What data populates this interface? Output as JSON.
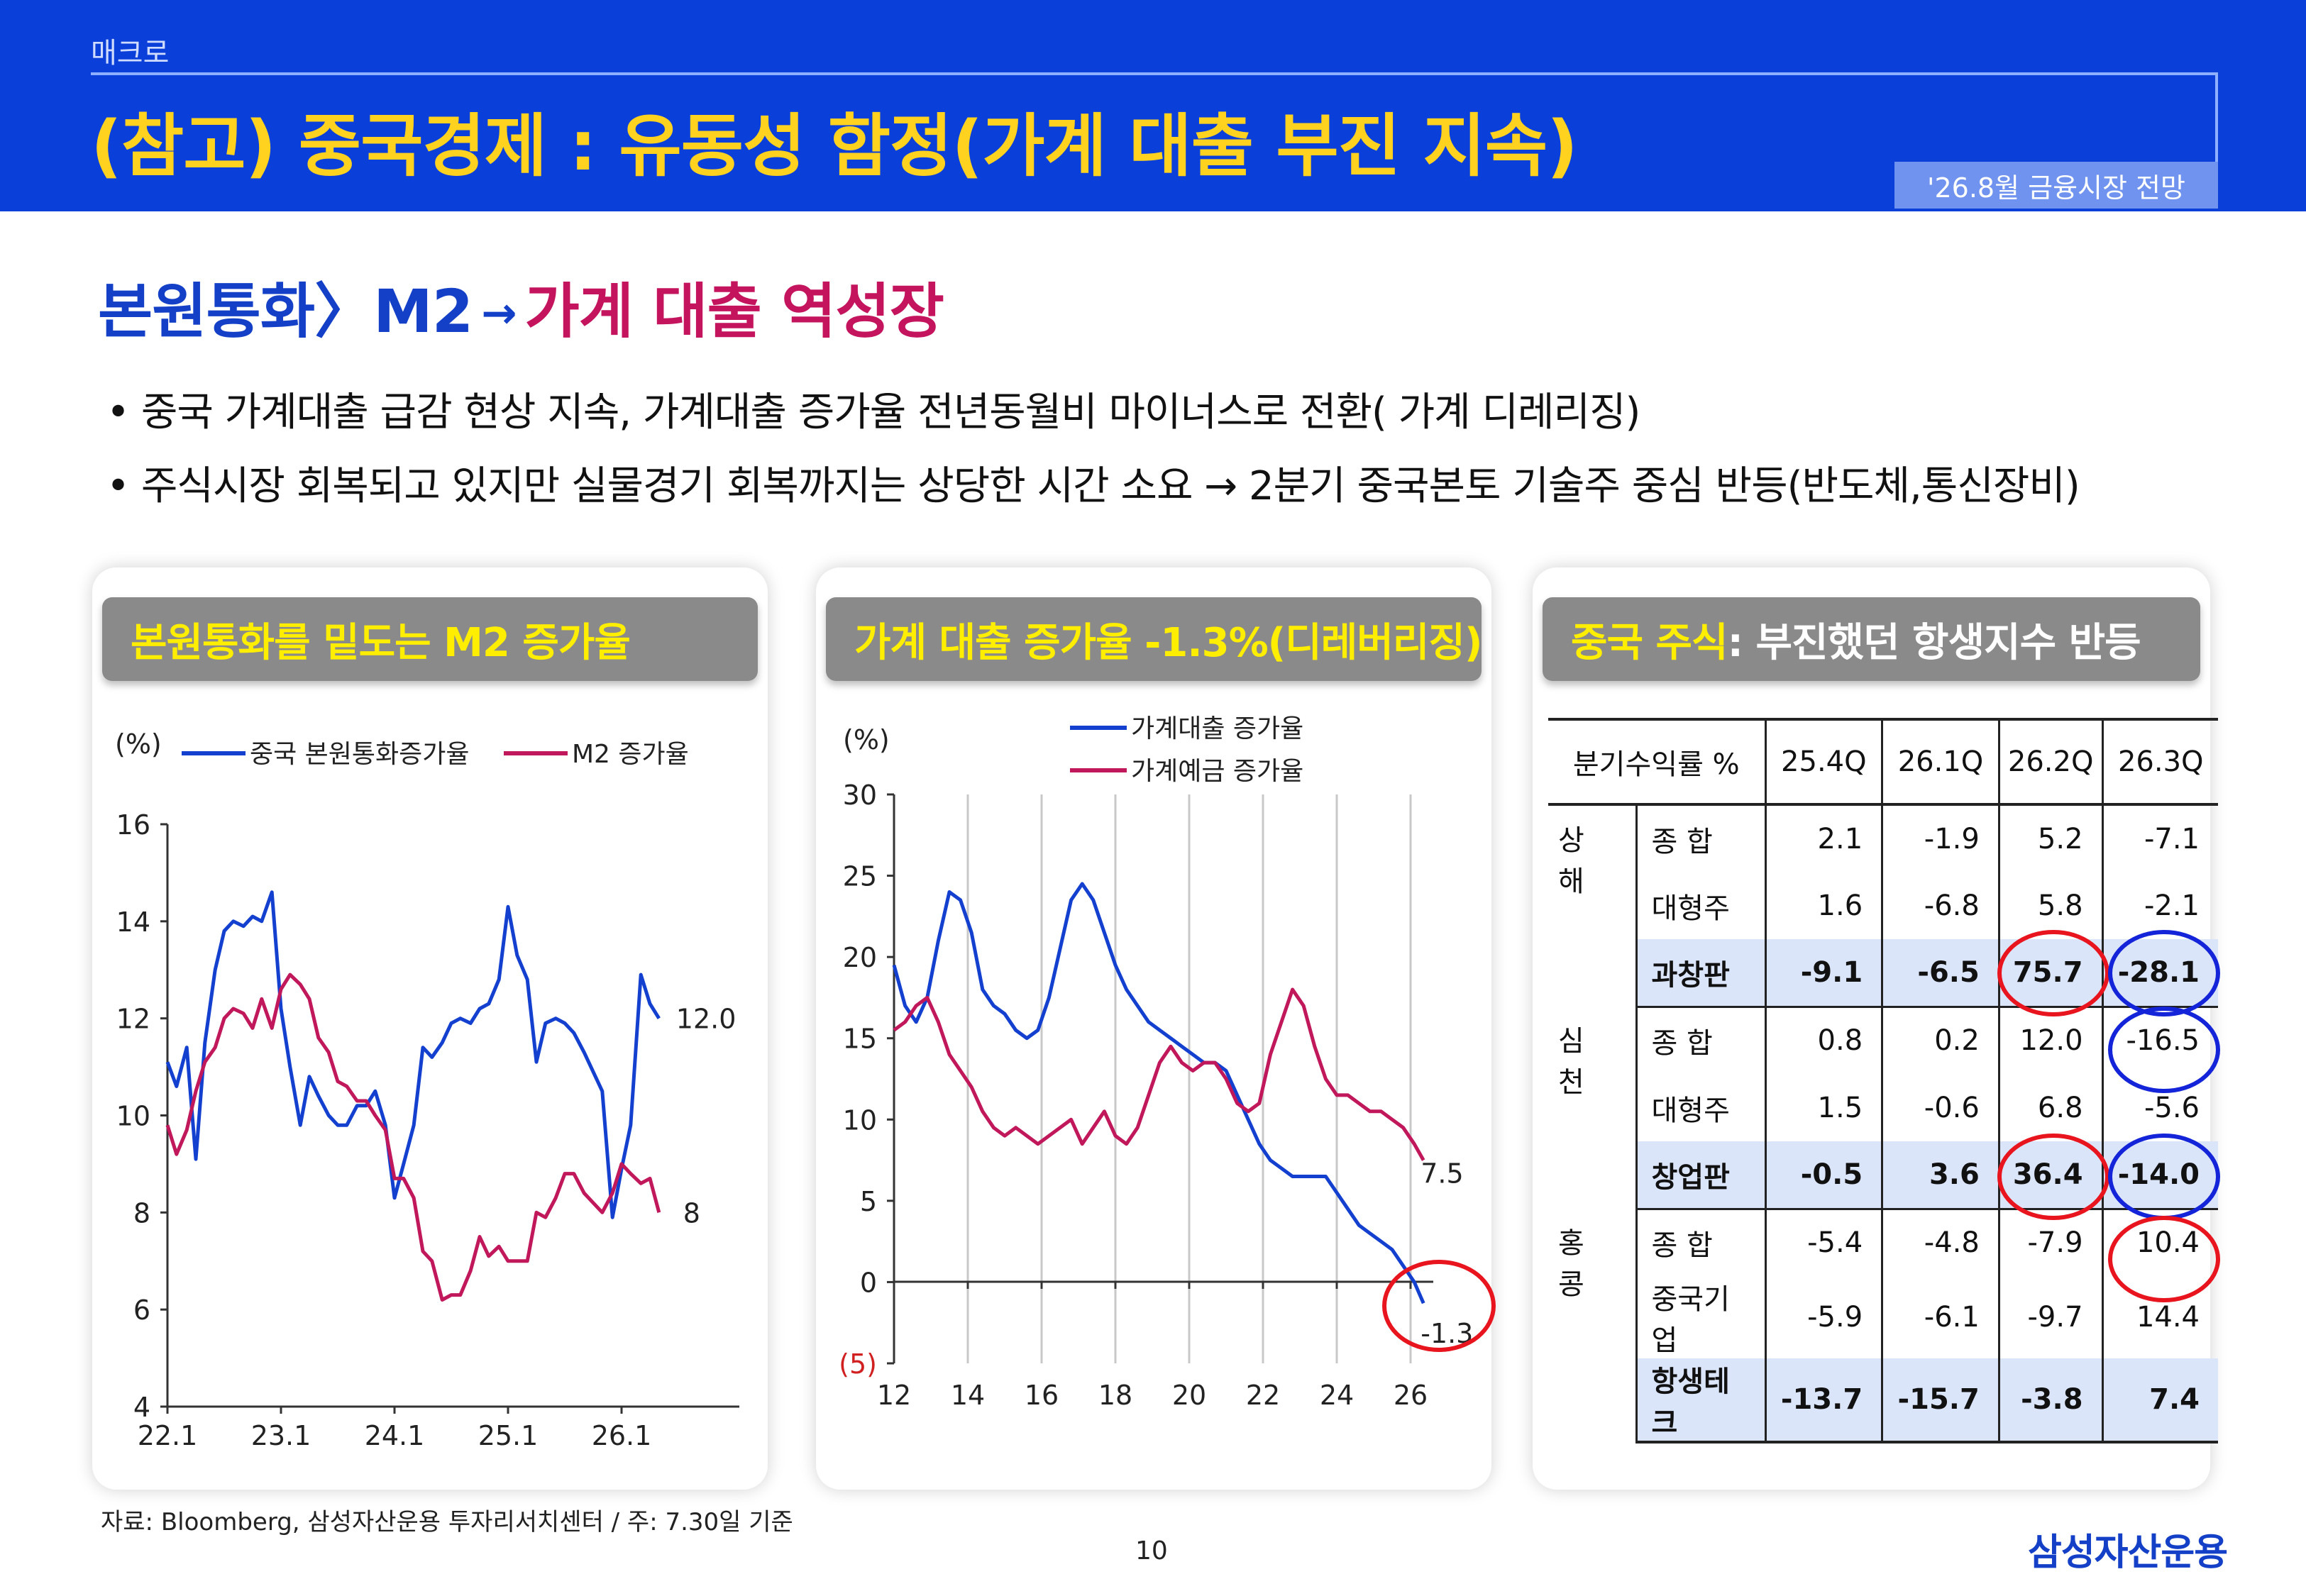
{
  "header": {
    "breadcrumb": "매크로",
    "title": "(참고) 중국경제 : 유동성 함정(가계 대출 부진 지속)",
    "badge": "'26.8월 금융시장 전망"
  },
  "subtitle": {
    "part1": "본원통화",
    "sep": "〉",
    "part2": "M2",
    "arrow": "→",
    "part3": "가계 대출 역성장"
  },
  "bullets": [
    "• 중국 가계대출 급감 현상 지속, 가계대출 증가율 전년동월비 마이너스로 전환( 가계 디레리징)",
    "• 주식시장 회복되고 있지만 실물경기 회복까지는 상당한 시간 소요 → 2분기 중국본토 기술주 중심 반등(반도체,통신장비)"
  ],
  "panels": {
    "p1_title": "본원통화를 밑도는 M2 증가율",
    "p2_title": "가계 대출 증가율 -1.3%(디레버리징)",
    "p3_title_a": "중국 주식",
    "p3_title_b": " : 부진했던 항생지수 반등"
  },
  "colors": {
    "blue_series": "#1440d0",
    "pink_series": "#c0185a",
    "header_bg": "#0b3fd9",
    "title_yellow": "#ffd21f"
  },
  "chart_data": [
    {
      "type": "line",
      "unit_label": "(%)",
      "x_ticks": [
        "22.1",
        "23.1",
        "24.1",
        "25.1",
        "26.1"
      ],
      "y_ticks": [
        "16",
        "14",
        "12",
        "10",
        "8",
        "6",
        "4"
      ],
      "ylim": [
        4,
        16
      ],
      "xlim": [
        2022.0,
        2026.7
      ],
      "series": [
        {
          "name": "중국 본원통화증가율",
          "color": "#1440d0",
          "end_label": "12.0",
          "points": [
            [
              2022.0,
              11.1
            ],
            [
              2022.08,
              10.6
            ],
            [
              2022.17,
              11.4
            ],
            [
              2022.25,
              9.1
            ],
            [
              2022.33,
              11.5
            ],
            [
              2022.42,
              13.0
            ],
            [
              2022.5,
              13.8
            ],
            [
              2022.58,
              14.0
            ],
            [
              2022.67,
              13.9
            ],
            [
              2022.75,
              14.1
            ],
            [
              2022.83,
              14.0
            ],
            [
              2022.92,
              14.6
            ],
            [
              2023.0,
              12.2
            ],
            [
              2023.08,
              11.0
            ],
            [
              2023.17,
              9.8
            ],
            [
              2023.25,
              10.8
            ],
            [
              2023.33,
              10.4
            ],
            [
              2023.42,
              10.0
            ],
            [
              2023.5,
              9.8
            ],
            [
              2023.58,
              9.8
            ],
            [
              2023.67,
              10.2
            ],
            [
              2023.75,
              10.2
            ],
            [
              2023.83,
              10.5
            ],
            [
              2023.92,
              9.8
            ],
            [
              2024.0,
              8.3
            ],
            [
              2024.08,
              9.0
            ],
            [
              2024.17,
              9.8
            ],
            [
              2024.25,
              11.4
            ],
            [
              2024.33,
              11.2
            ],
            [
              2024.42,
              11.5
            ],
            [
              2024.5,
              11.9
            ],
            [
              2024.58,
              12.0
            ],
            [
              2024.67,
              11.9
            ],
            [
              2024.75,
              12.2
            ],
            [
              2024.83,
              12.3
            ],
            [
              2024.92,
              12.8
            ],
            [
              2025.0,
              14.3
            ],
            [
              2025.08,
              13.3
            ],
            [
              2025.17,
              12.8
            ],
            [
              2025.25,
              11.1
            ],
            [
              2025.33,
              11.9
            ],
            [
              2025.42,
              12.0
            ],
            [
              2025.5,
              11.9
            ],
            [
              2025.58,
              11.7
            ],
            [
              2025.67,
              11.3
            ],
            [
              2025.75,
              10.9
            ],
            [
              2025.83,
              10.5
            ],
            [
              2025.92,
              7.9
            ],
            [
              2026.0,
              8.9
            ],
            [
              2026.08,
              9.8
            ],
            [
              2026.17,
              12.9
            ],
            [
              2026.25,
              12.3
            ],
            [
              2026.33,
              12.0
            ]
          ]
        },
        {
          "name": "M2 증가율",
          "color": "#c0185a",
          "end_label": "8",
          "points": [
            [
              2022.0,
              9.8
            ],
            [
              2022.08,
              9.2
            ],
            [
              2022.17,
              9.7
            ],
            [
              2022.25,
              10.5
            ],
            [
              2022.33,
              11.1
            ],
            [
              2022.42,
              11.4
            ],
            [
              2022.5,
              12.0
            ],
            [
              2022.58,
              12.2
            ],
            [
              2022.67,
              12.1
            ],
            [
              2022.75,
              11.8
            ],
            [
              2022.83,
              12.4
            ],
            [
              2022.92,
              11.8
            ],
            [
              2023.0,
              12.6
            ],
            [
              2023.08,
              12.9
            ],
            [
              2023.17,
              12.7
            ],
            [
              2023.25,
              12.4
            ],
            [
              2023.33,
              11.6
            ],
            [
              2023.42,
              11.3
            ],
            [
              2023.5,
              10.7
            ],
            [
              2023.58,
              10.6
            ],
            [
              2023.67,
              10.3
            ],
            [
              2023.75,
              10.3
            ],
            [
              2023.83,
              10.0
            ],
            [
              2023.92,
              9.7
            ],
            [
              2024.0,
              8.7
            ],
            [
              2024.08,
              8.7
            ],
            [
              2024.17,
              8.3
            ],
            [
              2024.25,
              7.2
            ],
            [
              2024.33,
              7.0
            ],
            [
              2024.42,
              6.2
            ],
            [
              2024.5,
              6.3
            ],
            [
              2024.58,
              6.3
            ],
            [
              2024.67,
              6.8
            ],
            [
              2024.75,
              7.5
            ],
            [
              2024.83,
              7.1
            ],
            [
              2024.92,
              7.3
            ],
            [
              2025.0,
              7.0
            ],
            [
              2025.08,
              7.0
            ],
            [
              2025.17,
              7.0
            ],
            [
              2025.25,
              8.0
            ],
            [
              2025.33,
              7.9
            ],
            [
              2025.42,
              8.3
            ],
            [
              2025.5,
              8.8
            ],
            [
              2025.58,
              8.8
            ],
            [
              2025.67,
              8.4
            ],
            [
              2025.75,
              8.2
            ],
            [
              2025.83,
              8.0
            ],
            [
              2025.92,
              8.4
            ],
            [
              2026.0,
              9.0
            ],
            [
              2026.08,
              8.8
            ],
            [
              2026.17,
              8.6
            ],
            [
              2026.25,
              8.7
            ],
            [
              2026.33,
              8.0
            ]
          ]
        }
      ]
    },
    {
      "type": "line",
      "unit_label": "(%)",
      "x_ticks": [
        "12",
        "14",
        "16",
        "18",
        "20",
        "22",
        "24",
        "26"
      ],
      "y_ticks": [
        "30",
        "25",
        "20",
        "15",
        "10",
        "5",
        "0",
        "(5)"
      ],
      "ylim": [
        -5,
        30
      ],
      "xlim": [
        2012.0,
        2027.0
      ],
      "series": [
        {
          "name": "가계대출 증가율",
          "color": "#1440d0",
          "end_label": "-1.3",
          "points": [
            [
              2012.0,
              19.5
            ],
            [
              2012.3,
              17.0
            ],
            [
              2012.6,
              16.0
            ],
            [
              2012.9,
              17.5
            ],
            [
              2013.2,
              21.0
            ],
            [
              2013.5,
              24.0
            ],
            [
              2013.8,
              23.5
            ],
            [
              2014.1,
              21.5
            ],
            [
              2014.4,
              18.0
            ],
            [
              2014.7,
              17.0
            ],
            [
              2015.0,
              16.5
            ],
            [
              2015.3,
              15.5
            ],
            [
              2015.6,
              15.0
            ],
            [
              2015.9,
              15.5
            ],
            [
              2016.2,
              17.5
            ],
            [
              2016.5,
              20.5
            ],
            [
              2016.8,
              23.5
            ],
            [
              2017.1,
              24.5
            ],
            [
              2017.4,
              23.5
            ],
            [
              2017.7,
              21.5
            ],
            [
              2018.0,
              19.5
            ],
            [
              2018.3,
              18.0
            ],
            [
              2018.6,
              17.0
            ],
            [
              2018.9,
              16.0
            ],
            [
              2019.2,
              15.5
            ],
            [
              2019.5,
              15.0
            ],
            [
              2019.8,
              14.5
            ],
            [
              2020.1,
              14.0
            ],
            [
              2020.4,
              13.5
            ],
            [
              2020.7,
              13.5
            ],
            [
              2021.0,
              13.0
            ],
            [
              2021.3,
              11.5
            ],
            [
              2021.6,
              10.0
            ],
            [
              2021.9,
              8.5
            ],
            [
              2022.2,
              7.5
            ],
            [
              2022.5,
              7.0
            ],
            [
              2022.8,
              6.5
            ],
            [
              2023.1,
              6.5
            ],
            [
              2023.4,
              6.5
            ],
            [
              2023.7,
              6.5
            ],
            [
              2024.0,
              5.5
            ],
            [
              2024.3,
              4.5
            ],
            [
              2024.6,
              3.5
            ],
            [
              2024.9,
              3.0
            ],
            [
              2025.2,
              2.5
            ],
            [
              2025.5,
              2.0
            ],
            [
              2025.8,
              1.0
            ],
            [
              2026.1,
              0.0
            ],
            [
              2026.35,
              -1.3
            ]
          ]
        },
        {
          "name": "가계예금 증가율",
          "color": "#c0185a",
          "end_label": "7.5",
          "points": [
            [
              2012.0,
              15.5
            ],
            [
              2012.3,
              16.0
            ],
            [
              2012.6,
              17.0
            ],
            [
              2012.9,
              17.5
            ],
            [
              2013.2,
              16.0
            ],
            [
              2013.5,
              14.0
            ],
            [
              2013.8,
              13.0
            ],
            [
              2014.1,
              12.0
            ],
            [
              2014.4,
              10.5
            ],
            [
              2014.7,
              9.5
            ],
            [
              2015.0,
              9.0
            ],
            [
              2015.3,
              9.5
            ],
            [
              2015.6,
              9.0
            ],
            [
              2015.9,
              8.5
            ],
            [
              2016.2,
              9.0
            ],
            [
              2016.5,
              9.5
            ],
            [
              2016.8,
              10.0
            ],
            [
              2017.1,
              8.5
            ],
            [
              2017.4,
              9.5
            ],
            [
              2017.7,
              10.5
            ],
            [
              2018.0,
              9.0
            ],
            [
              2018.3,
              8.5
            ],
            [
              2018.6,
              9.5
            ],
            [
              2018.9,
              11.5
            ],
            [
              2019.2,
              13.5
            ],
            [
              2019.5,
              14.5
            ],
            [
              2019.8,
              13.5
            ],
            [
              2020.1,
              13.0
            ],
            [
              2020.4,
              13.5
            ],
            [
              2020.7,
              13.5
            ],
            [
              2021.0,
              12.5
            ],
            [
              2021.3,
              11.0
            ],
            [
              2021.6,
              10.5
            ],
            [
              2021.9,
              11.0
            ],
            [
              2022.2,
              14.0
            ],
            [
              2022.5,
              16.0
            ],
            [
              2022.8,
              18.0
            ],
            [
              2023.1,
              17.0
            ],
            [
              2023.4,
              14.5
            ],
            [
              2023.7,
              12.5
            ],
            [
              2024.0,
              11.5
            ],
            [
              2024.3,
              11.5
            ],
            [
              2024.6,
              11.0
            ],
            [
              2024.9,
              10.5
            ],
            [
              2025.2,
              10.5
            ],
            [
              2025.5,
              10.0
            ],
            [
              2025.8,
              9.5
            ],
            [
              2026.1,
              8.5
            ],
            [
              2026.35,
              7.5
            ]
          ]
        }
      ]
    }
  ],
  "returns_table": {
    "headers": [
      "분기수익률 %",
      "25.4Q",
      "26.1Q",
      "26.2Q",
      "26.3Q"
    ],
    "groups": [
      {
        "region": "상 해",
        "rows": [
          {
            "index": "종 합",
            "values": [
              "2.1",
              "-1.9",
              "5.2",
              "-7.1"
            ]
          },
          {
            "index": "대형주",
            "values": [
              "1.6",
              "-6.8",
              "5.8",
              "-2.1"
            ]
          },
          {
            "index": "과창판",
            "values": [
              "-9.1",
              "-6.5",
              "75.7",
              "-28.1"
            ]
          }
        ]
      },
      {
        "region": "심 천",
        "rows": [
          {
            "index": "종 합",
            "values": [
              "0.8",
              "0.2",
              "12.0",
              "-16.5"
            ]
          },
          {
            "index": "대형주",
            "values": [
              "1.5",
              "-0.6",
              "6.8",
              "-5.6"
            ]
          },
          {
            "index": "창업판",
            "values": [
              "-0.5",
              "3.6",
              "36.4",
              "-14.0"
            ]
          }
        ]
      },
      {
        "region": "홍 콩",
        "rows": [
          {
            "index": "종    합",
            "values": [
              "-5.4",
              "-4.8",
              "-7.9",
              "10.4"
            ]
          },
          {
            "index": "중국기업",
            "values": [
              "-5.9",
              "-6.1",
              "-9.7",
              "14.4"
            ]
          },
          {
            "index": "항생테크",
            "values": [
              "-13.7",
              "-15.7",
              "-3.8",
              "7.4"
            ]
          }
        ]
      }
    ]
  },
  "footer": {
    "source": "자료: Bloomberg, 삼성자산운용 투자리서치센터 / 주: 7.30일 기준",
    "page": "10",
    "logo": "삼성자산운용"
  }
}
